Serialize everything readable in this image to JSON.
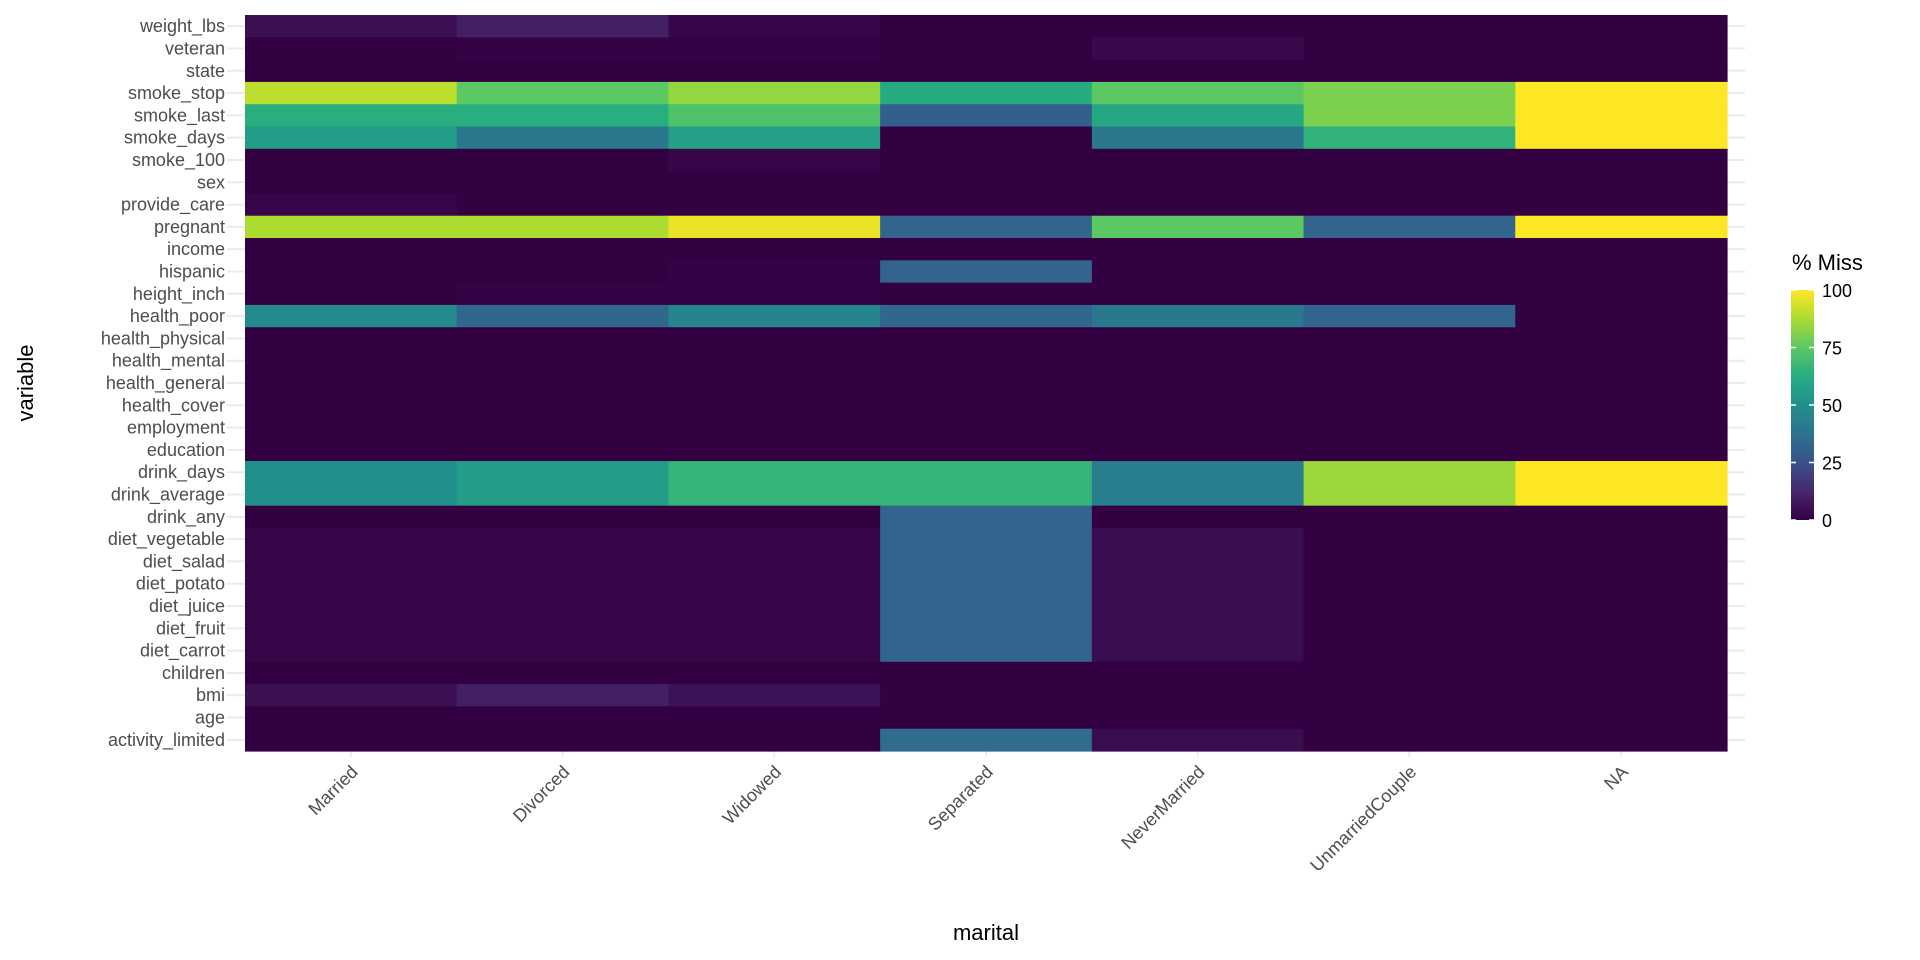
{
  "chart_data": {
    "type": "heatmap",
    "title": "",
    "xlabel": "marital",
    "ylabel": "variable",
    "legend": {
      "title": "% Miss",
      "position": "right",
      "ticks": [
        0,
        25,
        50,
        75,
        100
      ],
      "tick_labels": [
        "0",
        "25",
        "50",
        "75",
        "100"
      ],
      "range": [
        0,
        100
      ],
      "palette": "viridis"
    },
    "x": [
      "Married",
      "Divorced",
      "Widowed",
      "Separated",
      "NeverMarried",
      "UnmarriedCouple",
      "NA"
    ],
    "y": [
      "weight_lbs",
      "veteran",
      "state",
      "smoke_stop",
      "smoke_last",
      "smoke_days",
      "smoke_100",
      "sex",
      "provide_care",
      "pregnant",
      "income",
      "hispanic",
      "height_inch",
      "health_poor",
      "health_physical",
      "health_mental",
      "health_general",
      "health_cover",
      "employment",
      "education",
      "drink_days",
      "drink_average",
      "drink_any",
      "diet_vegetable",
      "diet_salad",
      "diet_potato",
      "diet_juice",
      "diet_fruit",
      "diet_carrot",
      "children",
      "bmi",
      "age",
      "activity_limited"
    ],
    "values": [
      [
        5,
        10,
        2,
        0,
        0,
        0,
        0
      ],
      [
        0,
        1,
        1,
        0,
        3,
        0,
        0
      ],
      [
        0,
        0,
        0,
        0,
        0,
        0,
        0
      ],
      [
        90,
        75,
        84,
        62,
        75,
        80,
        100
      ],
      [
        63,
        63,
        72,
        30,
        60,
        80,
        100
      ],
      [
        55,
        40,
        57,
        0,
        40,
        65,
        100
      ],
      [
        0,
        0,
        2,
        0,
        0,
        0,
        0
      ],
      [
        0,
        0,
        0,
        0,
        0,
        0,
        0
      ],
      [
        2,
        0,
        0,
        0,
        0,
        0,
        0
      ],
      [
        88,
        88,
        97,
        32,
        75,
        32,
        100
      ],
      [
        0,
        0,
        0,
        0,
        0,
        0,
        0
      ],
      [
        0,
        0,
        1,
        32,
        0,
        0,
        0
      ],
      [
        0,
        1,
        1,
        0,
        0,
        0,
        0
      ],
      [
        48,
        33,
        45,
        33,
        40,
        32,
        0
      ],
      [
        0,
        0,
        0,
        0,
        0,
        0,
        0
      ],
      [
        0,
        0,
        0,
        0,
        0,
        0,
        0
      ],
      [
        0,
        0,
        0,
        0,
        0,
        0,
        0
      ],
      [
        0,
        0,
        0,
        0,
        0,
        0,
        0
      ],
      [
        0,
        0,
        0,
        0,
        0,
        0,
        0
      ],
      [
        0,
        0,
        0,
        0,
        0,
        0,
        0
      ],
      [
        50,
        55,
        66,
        66,
        42,
        85,
        100
      ],
      [
        50,
        55,
        66,
        66,
        42,
        85,
        100
      ],
      [
        0,
        0,
        0,
        32,
        0,
        0,
        0
      ],
      [
        2,
        2,
        2,
        32,
        4,
        0,
        0
      ],
      [
        2,
        2,
        2,
        32,
        4,
        0,
        0
      ],
      [
        2,
        2,
        2,
        32,
        4,
        0,
        0
      ],
      [
        2,
        2,
        2,
        32,
        4,
        0,
        0
      ],
      [
        2,
        2,
        2,
        32,
        4,
        0,
        0
      ],
      [
        2,
        2,
        2,
        32,
        4,
        0,
        0
      ],
      [
        0,
        0,
        0,
        0,
        0,
        0,
        0
      ],
      [
        5,
        10,
        6,
        0,
        0,
        0,
        0
      ],
      [
        0,
        0,
        0,
        0,
        0,
        0,
        0
      ],
      [
        0,
        0,
        0,
        35,
        4,
        0,
        0
      ]
    ]
  }
}
